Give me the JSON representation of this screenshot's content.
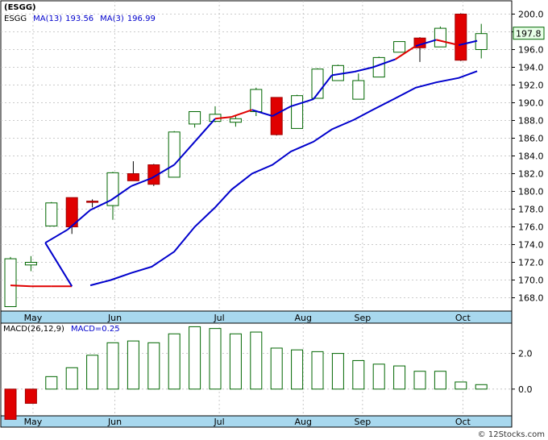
{
  "chart_data": [
    {
      "type": "candlestick",
      "ticker": "ESGG",
      "ma13_label": "MA(13)",
      "ma13_value": "193.56",
      "ma3_label": "MA(3)",
      "ma3_value": "196.99",
      "last_price": "197.8",
      "ylim": [
        166.5,
        201.5
      ],
      "y_ticks": [
        "168.0",
        "170.0",
        "172.0",
        "174.0",
        "176.0",
        "178.0",
        "180.0",
        "182.0",
        "184.0",
        "186.0",
        "188.0",
        "190.0",
        "192.0",
        "194.0",
        "196.0",
        "198.0",
        "200.0"
      ],
      "x_ticks": [
        "May",
        "Jun",
        "Jul",
        "Aug",
        "Sep",
        "Oct"
      ],
      "x_tick_index": [
        1.1,
        5.1,
        10.2,
        14.3,
        17.2,
        22.1
      ],
      "candles": [
        {
          "o": 167.0,
          "h": 172.6,
          "l": 167.0,
          "c": 172.4
        },
        {
          "o": 171.7,
          "h": 172.7,
          "l": 171.0,
          "c": 172.0
        },
        {
          "o": 176.1,
          "h": 178.8,
          "l": 176.1,
          "c": 178.7
        },
        {
          "o": 179.3,
          "h": 179.3,
          "l": 175.2,
          "c": 176.0
        },
        {
          "o": 178.9,
          "h": 179.1,
          "l": 178.2,
          "c": 178.8
        },
        {
          "o": 178.4,
          "h": 182.2,
          "l": 176.8,
          "c": 182.1
        },
        {
          "o": 182.0,
          "h": 183.4,
          "l": 181.3,
          "c": 181.2
        },
        {
          "o": 183.0,
          "h": 183.1,
          "l": 180.6,
          "c": 180.8
        },
        {
          "o": 181.6,
          "h": 186.8,
          "l": 181.6,
          "c": 186.7
        },
        {
          "o": 187.6,
          "h": 189.0,
          "l": 187.2,
          "c": 189.0
        },
        {
          "o": 187.9,
          "h": 189.6,
          "l": 187.8,
          "c": 188.7
        },
        {
          "o": 187.8,
          "h": 188.5,
          "l": 187.3,
          "c": 188.2
        },
        {
          "o": 189.0,
          "h": 191.7,
          "l": 188.5,
          "c": 191.5
        },
        {
          "o": 190.6,
          "h": 190.6,
          "l": 186.3,
          "c": 186.4
        },
        {
          "o": 187.1,
          "h": 190.9,
          "l": 187.1,
          "c": 190.8
        },
        {
          "o": 190.5,
          "h": 193.9,
          "l": 190.5,
          "c": 193.8
        },
        {
          "o": 192.5,
          "h": 194.3,
          "l": 192.5,
          "c": 194.2
        },
        {
          "o": 190.4,
          "h": 193.3,
          "l": 190.4,
          "c": 192.5
        },
        {
          "o": 192.9,
          "h": 195.2,
          "l": 192.9,
          "c": 195.1
        },
        {
          "o": 195.7,
          "h": 196.9,
          "l": 195.7,
          "c": 196.9
        },
        {
          "o": 197.3,
          "h": 197.4,
          "l": 194.6,
          "c": 196.2
        },
        {
          "o": 196.3,
          "h": 198.6,
          "l": 196.3,
          "c": 198.4
        },
        {
          "o": 200.0,
          "h": 200.1,
          "l": 194.7,
          "c": 194.8
        },
        {
          "o": 196.0,
          "h": 198.9,
          "l": 195.0,
          "c": 197.8
        }
      ],
      "ma13": [
        null,
        null,
        null,
        null,
        null,
        null,
        169.4,
        170.0,
        170.8,
        171.5,
        173.2,
        176.0,
        178.2,
        180.2,
        182.0,
        183.0,
        184.5,
        185.6,
        187.0,
        188.1,
        189.2,
        190.5,
        191.7,
        192.3,
        192.8,
        193.56
      ],
      "ma3": [
        169.4,
        169.3,
        169.3,
        169.3,
        174.2,
        175.7,
        177.9,
        179.0,
        180.6,
        181.5,
        183.0,
        185.6,
        188.2,
        188.4,
        189.2,
        188.5,
        189.6,
        190.4,
        193.1,
        193.5,
        194.0,
        194.9,
        196.4,
        197.1,
        196.5,
        196.99
      ],
      "ma_positions": [
        0.5,
        1.5,
        2.5,
        3.5,
        2.2,
        3.3,
        4.4,
        5.4,
        6.4,
        7.4,
        8.5,
        9.5,
        10.5,
        11.3,
        12.3,
        13.3,
        14.2,
        15.3,
        16.2,
        17.3,
        18.2,
        19.3,
        20.3,
        21.3,
        22.4,
        23.3
      ],
      "ma3_red_segments": [
        [
          0,
          3
        ],
        [
          12,
          14
        ],
        [
          21,
          22
        ],
        [
          23,
          24
        ]
      ]
    },
    {
      "type": "bar",
      "title": "MACD(26,12,9)",
      "value_label": "MACD=0.25",
      "ylim": [
        -1.5,
        3.7
      ],
      "y_ticks": [
        "0.0",
        "2.0"
      ],
      "values": [
        -1.7,
        -0.8,
        0.7,
        1.2,
        1.9,
        2.6,
        2.7,
        2.6,
        3.1,
        3.5,
        3.4,
        3.1,
        3.2,
        2.3,
        2.2,
        2.1,
        2.0,
        1.6,
        1.4,
        1.3,
        1.0,
        1.0,
        0.4,
        0.25
      ],
      "bar_colors": [
        "#e00000",
        "#e00000",
        "#ffffff",
        "#ffffff",
        "#ffffff",
        "#ffffff",
        "#ffffff",
        "#ffffff",
        "#ffffff",
        "#ffffff",
        "#ffffff",
        "#ffffff",
        "#ffffff",
        "#ffffff",
        "#ffffff",
        "#ffffff",
        "#ffffff",
        "#ffffff",
        "#ffffff",
        "#ffffff",
        "#ffffff",
        "#ffffff",
        "#ffffff",
        "#ffffff"
      ]
    }
  ],
  "watermark": "© 12Stocks.com",
  "colors": {
    "up_fill": "#ffffff",
    "up_stroke": "#006600",
    "down_fill": "#e00000",
    "ma13": "#0000cc",
    "ma3_up": "#0000cc",
    "ma3_down": "#e00000",
    "axis_band": "#a8d8ee",
    "ticker_color": "#000000",
    "ma_label_color": "#0000cc",
    "price_box": "#e8ffe8"
  }
}
